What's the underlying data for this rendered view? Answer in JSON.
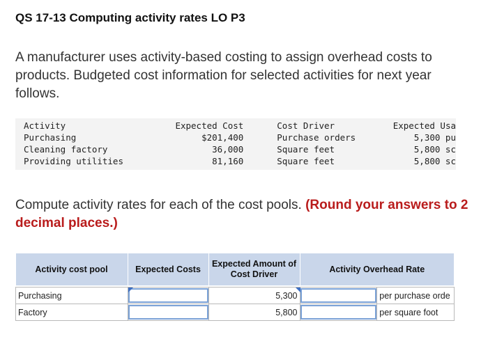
{
  "title": "QS 17-13 Computing activity rates LO P3",
  "intro": "A manufacturer uses activity-based costing to assign overhead costs to products. Budgeted cost information for selected activities for next year follows.",
  "info_table": {
    "headers": [
      "Activity",
      "Expected Cost",
      "Cost Driver",
      "Expected Usa"
    ],
    "rows": [
      [
        "Purchasing",
        "$201,400",
        "Purchase orders",
        "5,300 pu"
      ],
      [
        "Cleaning factory",
        "36,000",
        "Square feet",
        "5,800 sc"
      ],
      [
        "Providing utilities",
        "81,160",
        "Square feet",
        "5,800 sc"
      ]
    ]
  },
  "question": {
    "text": "Compute activity rates for each of the cost pools. ",
    "hint": "(Round your answers to 2 decimal places.)"
  },
  "answer_table": {
    "headers": [
      "Activity cost pool",
      "Expected Costs",
      "Expected Amount of Cost Driver",
      "Activity Overhead Rate"
    ],
    "rows": [
      {
        "pool": "Purchasing",
        "expected_costs": "",
        "driver_amount": "5,300",
        "rate": "",
        "unit": "per purchase orde"
      },
      {
        "pool": "Factory",
        "expected_costs": "",
        "driver_amount": "5,800",
        "rate": "",
        "unit": "per square foot"
      }
    ]
  }
}
